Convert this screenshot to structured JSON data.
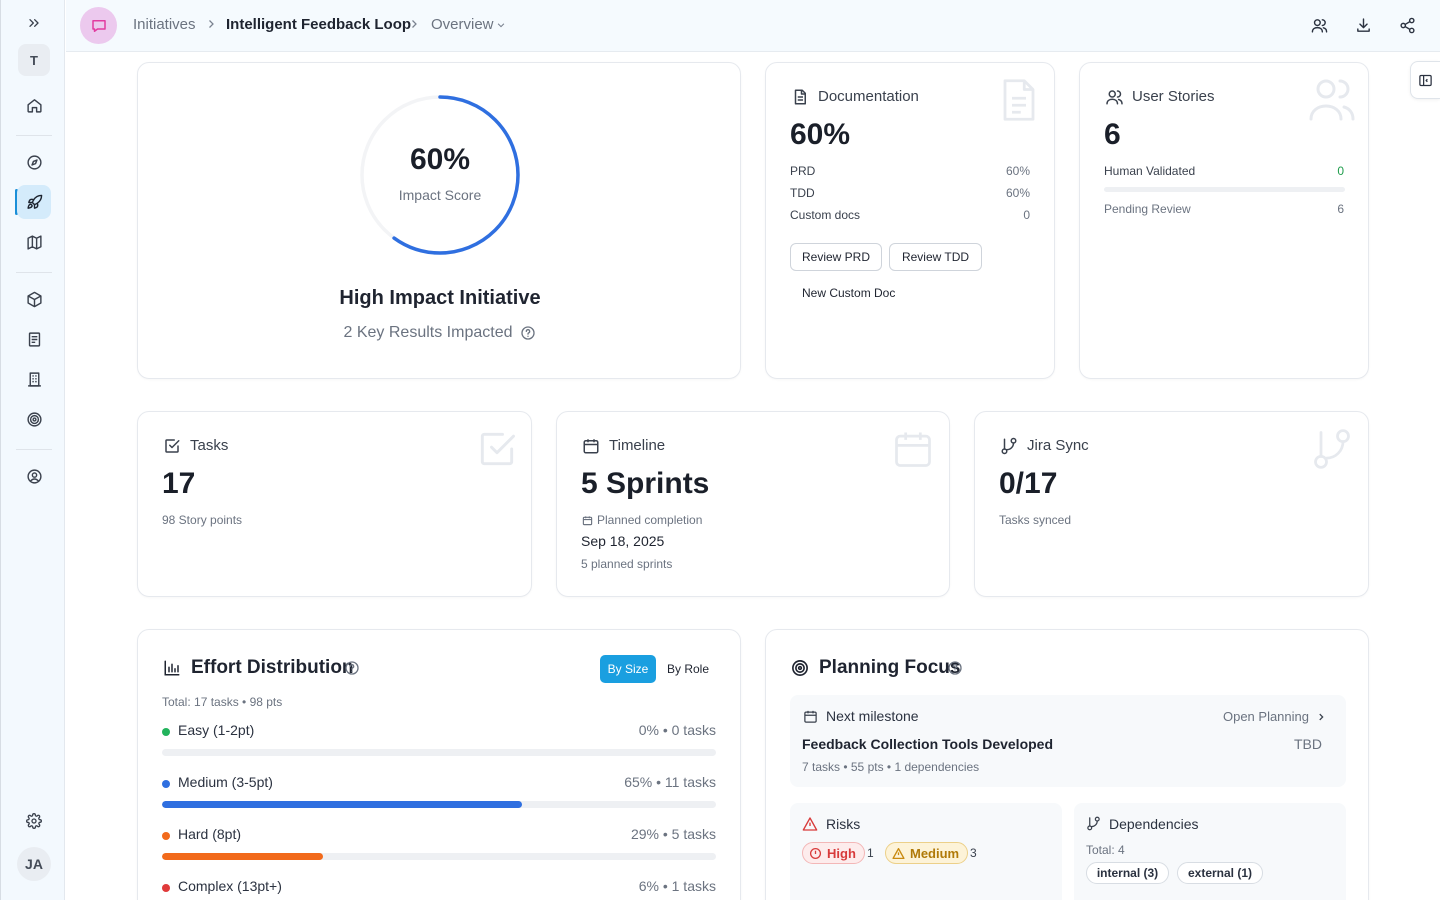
{
  "sidebar": {
    "team_initial": "T",
    "user_initials": "JA",
    "items": [
      {
        "name": "expand",
        "icon": "chevrons-right-icon"
      },
      {
        "name": "home",
        "icon": "home-icon"
      },
      {
        "name": "discover",
        "icon": "compass-icon"
      },
      {
        "name": "initiatives",
        "icon": "rocket-icon"
      },
      {
        "name": "roadmap",
        "icon": "map-icon"
      },
      {
        "name": "products",
        "icon": "cube-icon"
      },
      {
        "name": "documents",
        "icon": "document-icon"
      },
      {
        "name": "organization",
        "icon": "building-icon"
      },
      {
        "name": "goals",
        "icon": "target-icon"
      },
      {
        "name": "profile",
        "icon": "user-circle-icon"
      },
      {
        "name": "settings",
        "icon": "gear-icon"
      }
    ]
  },
  "header": {
    "breadcrumb": [
      "Initiatives",
      "Intelligent Feedback Loop",
      "Overview"
    ],
    "actions": [
      "users-icon",
      "download-icon",
      "share-icon"
    ]
  },
  "impact": {
    "score_label": "60%",
    "score_value": 60,
    "caption": "Impact Score",
    "headline": "High Impact Initiative",
    "key_results": "2 Key Results Impacted"
  },
  "documentation": {
    "title": "Documentation",
    "percent": "60%",
    "rows": [
      {
        "label": "PRD",
        "value": "60%"
      },
      {
        "label": "TDD",
        "value": "60%"
      },
      {
        "label": "Custom docs",
        "value": "0"
      }
    ],
    "review_prd": "Review PRD",
    "review_tdd": "Review TDD",
    "new_doc": "New Custom Doc"
  },
  "user_stories": {
    "title": "User Stories",
    "count": "6",
    "validated_label": "Human Validated",
    "validated_value": "0",
    "validated_fraction": 0,
    "pending_label": "Pending Review",
    "pending_value": "6"
  },
  "tasks": {
    "title": "Tasks",
    "count": "17",
    "subtitle": "98 Story points"
  },
  "timeline": {
    "title": "Timeline",
    "value": "5 Sprints",
    "planned_label": "Planned completion",
    "date": "Sep 18, 2025",
    "planned_sprints": "5 planned sprints"
  },
  "jira": {
    "title": "Jira Sync",
    "value": "0/17",
    "subtitle": "Tasks synced"
  },
  "effort": {
    "title": "Effort Distribution",
    "tab_size": "By Size",
    "tab_role": "By Role",
    "total": "Total: 17 tasks • 98 pts",
    "rows": [
      {
        "label": "Easy (1-2pt)",
        "stat": "0% • 0 tasks",
        "percent": 0,
        "color": "#22b35c"
      },
      {
        "label": "Medium (3-5pt)",
        "stat": "65% • 11 tasks",
        "percent": 65,
        "color": "#2f6fe0"
      },
      {
        "label": "Hard (8pt)",
        "stat": "29% • 5 tasks",
        "percent": 29,
        "color": "#f26a1b"
      },
      {
        "label": "Complex (13pt+)",
        "stat": "6% • 1 tasks",
        "percent": 6,
        "color": "#e03a3a"
      }
    ]
  },
  "planning": {
    "title": "Planning Focus",
    "milestone_label": "Next milestone",
    "open_planning": "Open Planning",
    "milestone_name": "Feedback Collection Tools Developed",
    "milestone_date": "TBD",
    "milestone_meta": "7 tasks • 55 pts • 1 dependencies",
    "risks_title": "Risks",
    "risk_high": "High",
    "risk_high_count": "1",
    "risk_medium": "Medium",
    "risk_medium_count": "3",
    "deps_title": "Dependencies",
    "deps_total": "Total: 4",
    "dep_internal": "internal (3)",
    "dep_external": "external (1)"
  },
  "colors": {
    "accent": "#1a9fe0",
    "ring": "#2f6fe0",
    "success": "#1f9d4c",
    "danger": "#d83b3b",
    "warning": "#c98a10"
  }
}
